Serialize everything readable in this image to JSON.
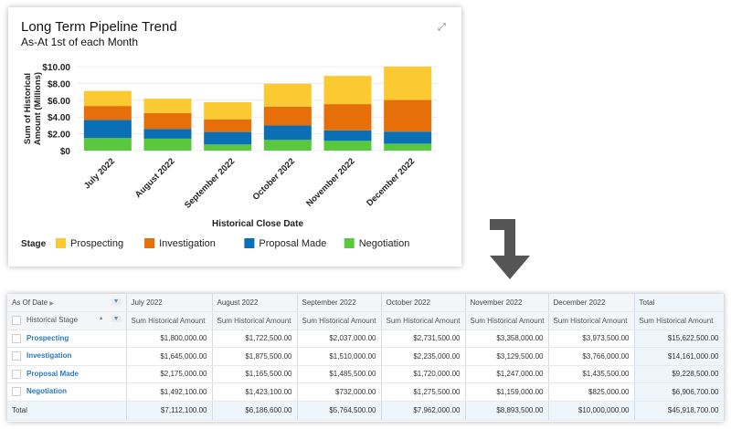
{
  "chart_card": {
    "title": "Long Term Pipeline Trend",
    "subtitle": "As-At 1st of each Month",
    "expand_icon": "expand-icon"
  },
  "chart_data": {
    "type": "bar",
    "stacked": true,
    "title": "Long Term Pipeline Trend",
    "subtitle": "As-At 1st of each Month",
    "xlabel": "Historical Close Date",
    "ylabel": "Sum of Historical Amount (Millions)",
    "ylim": [
      0,
      10
    ],
    "yticks": [
      "$0",
      "$2.00",
      "$4.00",
      "$6.00",
      "$8.00",
      "$10.00"
    ],
    "ytick_values": [
      0,
      2,
      4,
      6,
      8,
      10
    ],
    "grid": true,
    "legend_title": "Stage",
    "legend_placement": "bottom",
    "categories": [
      "July 2022",
      "August 2022",
      "September 2022",
      "October 2022",
      "November 2022",
      "December 2022"
    ],
    "series": [
      {
        "name": "Negotiation",
        "color": "#5ac83c",
        "values": [
          1.4921,
          1.4231,
          0.732,
          1.2755,
          1.159,
          0.825
        ]
      },
      {
        "name": "Proposal Made",
        "color": "#0a6fb5",
        "values": [
          2.175,
          1.1655,
          1.4855,
          1.72,
          1.247,
          1.4355
        ]
      },
      {
        "name": "Investigation",
        "color": "#e66f0a",
        "values": [
          1.645,
          1.8755,
          1.51,
          2.235,
          3.1295,
          3.766
        ]
      },
      {
        "name": "Prospecting",
        "color": "#fbc932",
        "values": [
          1.8,
          1.7225,
          2.037,
          2.7315,
          3.358,
          3.9735
        ]
      }
    ],
    "legend_order": [
      "Prospecting",
      "Investigation",
      "Proposal Made",
      "Negotiation"
    ]
  },
  "table": {
    "corner_top": "As Of Date",
    "corner_sub": "Historical Stage",
    "columns": [
      "July 2022",
      "August 2022",
      "September 2022",
      "October 2022",
      "November 2022",
      "December 2022",
      "Total"
    ],
    "measure": "Sum Historical Amount",
    "rows": [
      {
        "stage": "Prospecting",
        "values": [
          "$1,800,000.00",
          "$1,722,500.00",
          "$2,037,000.00",
          "$2,731,500.00",
          "$3,358,000.00",
          "$3,973,500.00",
          "$15,622,500.00"
        ]
      },
      {
        "stage": "Investigation",
        "values": [
          "$1,645,000.00",
          "$1,875,500.00",
          "$1,510,000.00",
          "$2,235,000.00",
          "$3,129,500.00",
          "$3,766,000.00",
          "$14,161,000.00"
        ]
      },
      {
        "stage": "Proposal Made",
        "values": [
          "$2,175,000.00",
          "$1,165,500.00",
          "$1,485,500.00",
          "$1,720,000.00",
          "$1,247,000.00",
          "$1,435,500.00",
          "$9,228,500.00"
        ]
      },
      {
        "stage": "Negotiation",
        "values": [
          "$1,492,100.00",
          "$1,423,100.00",
          "$732,000.00",
          "$1,275,500.00",
          "$1,159,000.00",
          "$825,000.00",
          "$6,906,700.00"
        ]
      }
    ],
    "total": {
      "label": "Total",
      "values": [
        "$7,112,100.00",
        "$6,186,600.00",
        "$5,764,500.00",
        "$7,962,000.00",
        "$8,893,500.00",
        "$10,000,000.00",
        "$45,918,700.00"
      ]
    }
  }
}
